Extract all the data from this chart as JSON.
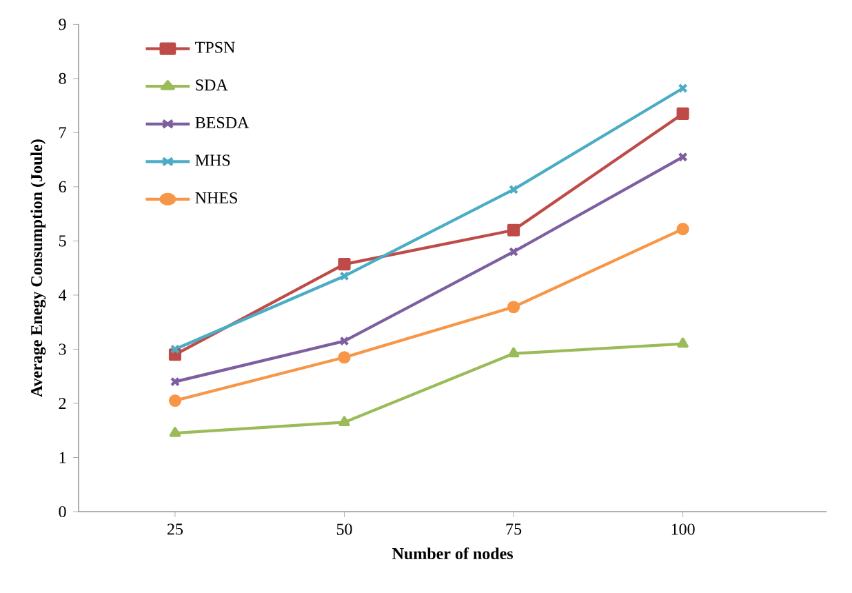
{
  "chart_data": {
    "type": "line",
    "xlabel": "Number  of nodes",
    "ylabel": "Average  Enegy  Consumption  (Joule)",
    "categories": [
      "25",
      "50",
      "75",
      "100"
    ],
    "series": [
      {
        "name": "TPSN",
        "color": "#be4b48",
        "marker": "square",
        "values": [
          2.9,
          4.57,
          5.2,
          7.35
        ]
      },
      {
        "name": "SDA",
        "color": "#9bbb59",
        "marker": "triangle",
        "values": [
          1.45,
          1.65,
          2.92,
          3.1
        ]
      },
      {
        "name": "BESDA",
        "color": "#7d5fa0",
        "marker": "cross",
        "values": [
          2.4,
          3.15,
          4.8,
          6.55
        ]
      },
      {
        "name": "MHS",
        "color": "#4bacc6",
        "marker": "cross",
        "values": [
          3.0,
          4.35,
          5.95,
          7.82
        ]
      },
      {
        "name": "NHES",
        "color": "#f79646",
        "marker": "circle",
        "values": [
          2.05,
          2.85,
          3.78,
          5.22
        ]
      }
    ],
    "ylim": [
      0,
      9
    ],
    "yticks": [
      0,
      1,
      2,
      3,
      4,
      5,
      6,
      7,
      8,
      9
    ],
    "grid": false,
    "legend": "top left",
    "line_style": "solid"
  }
}
